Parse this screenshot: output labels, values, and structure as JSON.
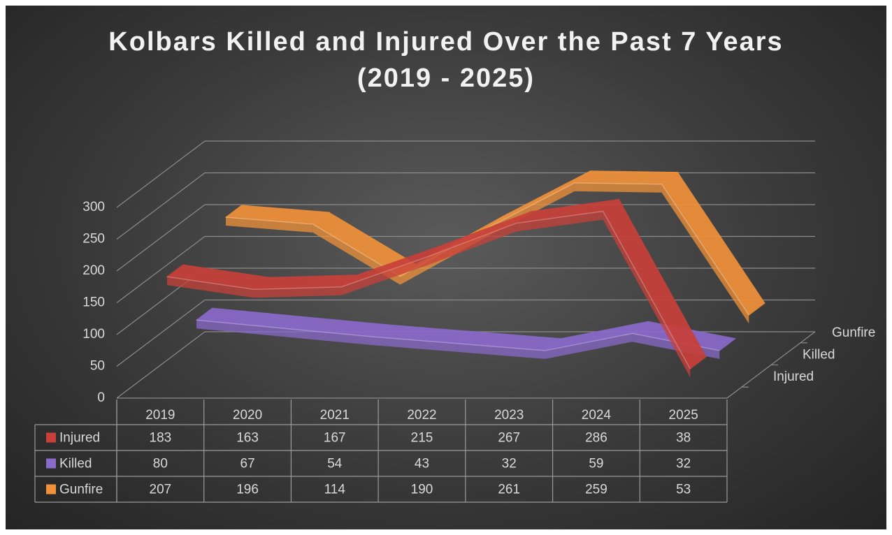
{
  "chart_data": {
    "type": "line3d",
    "title": "Kolbars Killed and Injured Over the Past 7 Years (2019 - 2025)",
    "categories": [
      "2019",
      "2020",
      "2021",
      "2022",
      "2023",
      "2024",
      "2025"
    ],
    "series": [
      {
        "name": "Injured",
        "color": "#c8403a",
        "values": [
          183,
          163,
          167,
          215,
          267,
          286,
          38
        ]
      },
      {
        "name": "Killed",
        "color": "#8a6acb",
        "values": [
          80,
          67,
          54,
          43,
          32,
          59,
          32
        ]
      },
      {
        "name": "Gunfire",
        "color": "#f0913a",
        "values": [
          207,
          196,
          114,
          190,
          261,
          259,
          53
        ]
      }
    ],
    "ylim": [
      0,
      300
    ],
    "yticks": [
      0,
      50,
      100,
      150,
      200,
      250,
      300
    ],
    "grid": true
  }
}
